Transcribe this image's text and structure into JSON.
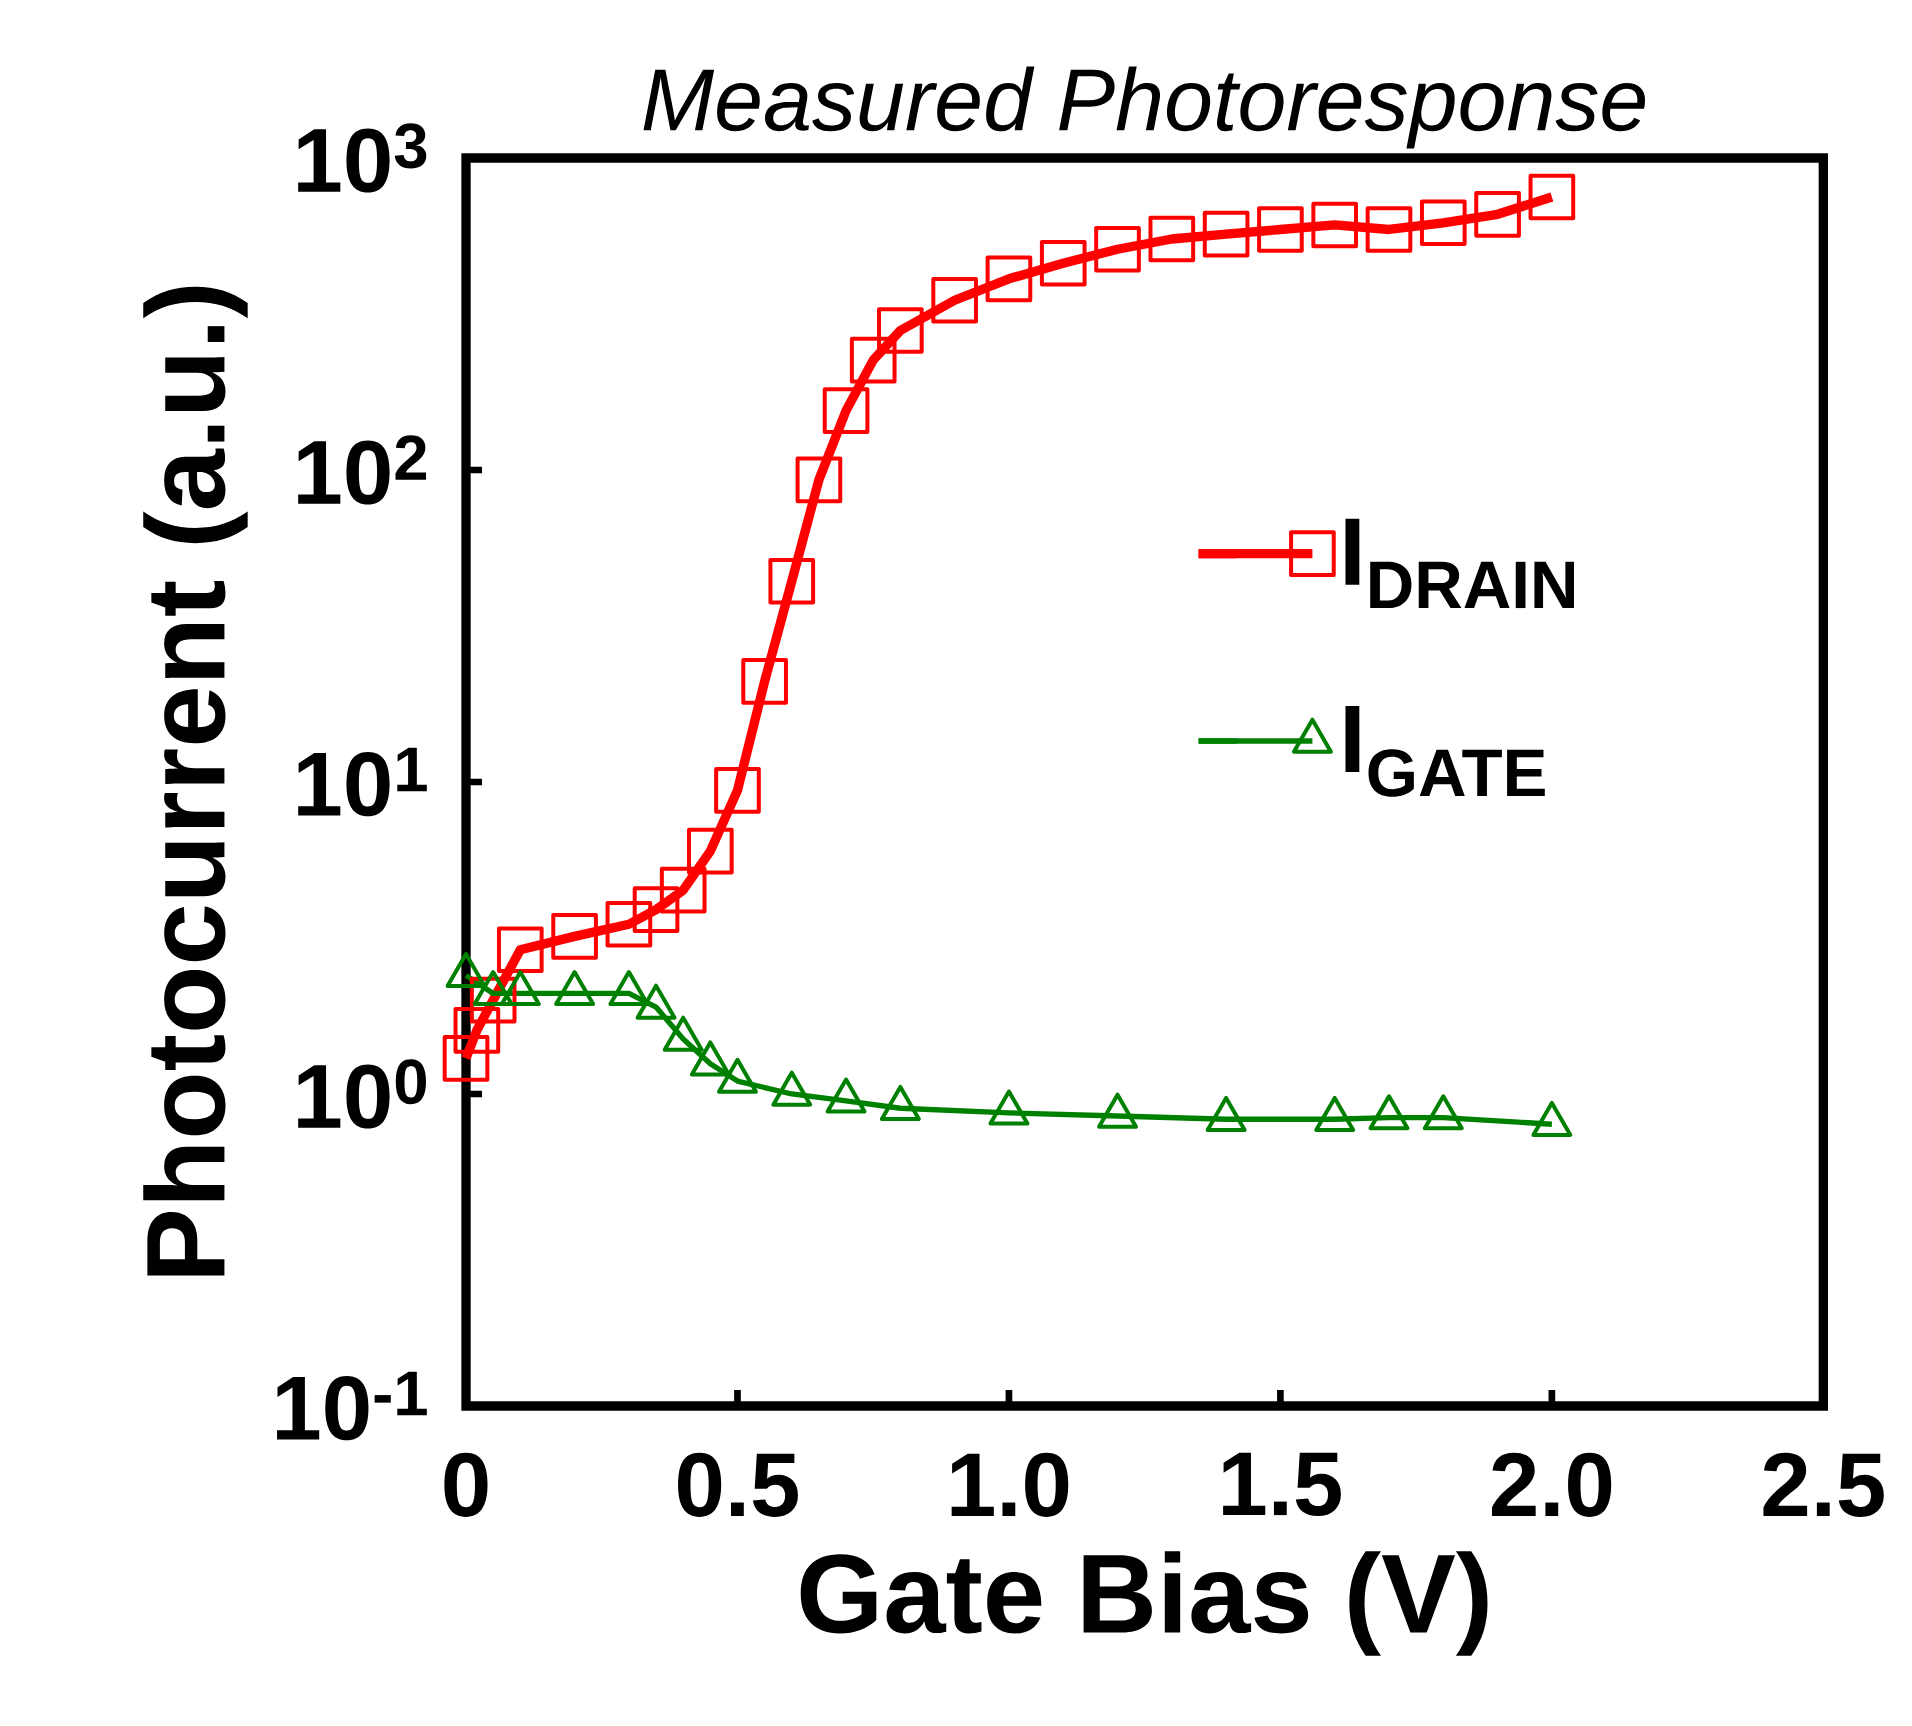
{
  "chart_data": {
    "type": "line",
    "title": "Measured Photoresponse",
    "xlabel": "Gate Bias (V)",
    "ylabel": "Photocurrent (a.u.)",
    "xlim": [
      0,
      2.5
    ],
    "ylim": [
      0.1,
      1000
    ],
    "log": "y",
    "legend": "right",
    "line_style": "solid",
    "xticks": [
      0,
      0.5,
      {
        "value": 1,
        "label": "1.0"
      },
      1.5,
      {
        "value": 2,
        "label": "2.0"
      },
      2.5
    ],
    "yticks": [
      {
        "value": 0.1,
        "label": "10$^{-1}$"
      },
      {
        "value": 1,
        "label": "10$^{0}$"
      },
      {
        "value": 10,
        "label": "10$^{1}$"
      },
      {
        "value": 100,
        "label": "10$^{2}$"
      },
      {
        "value": 1000,
        "label": "10$^{3}$"
      }
    ],
    "series": [
      {
        "name": "I$_{DRAIN}$",
        "color": "#ff0000",
        "marker": "square",
        "x": [
          0,
          0.02,
          0.05,
          0.1,
          0.2,
          0.3,
          0.35,
          0.4,
          0.45,
          0.5,
          0.55,
          0.6,
          0.65,
          0.7,
          0.75,
          0.8,
          0.9,
          1.0,
          1.1,
          1.2,
          1.3,
          1.4,
          1.5,
          1.6,
          1.7,
          1.8,
          1.9,
          2.0
        ],
        "values": [
          1.3,
          1.6,
          2.0,
          2.9,
          3.2,
          3.5,
          3.9,
          4.5,
          6.0,
          9.4,
          21,
          44,
          93,
          155,
          225,
          280,
          350,
          410,
          460,
          510,
          550,
          570,
          590,
          610,
          590,
          620,
          660,
          750
        ]
      },
      {
        "name": "I$_{GATE}$",
        "color": "#008000",
        "marker": "triangle",
        "x": [
          0,
          0.05,
          0.1,
          0.2,
          0.3,
          0.35,
          0.4,
          0.45,
          0.5,
          0.6,
          0.7,
          0.8,
          1.0,
          1.2,
          1.4,
          1.6,
          1.7,
          1.8,
          2.0
        ],
        "values": [
          2.4,
          2.1,
          2.1,
          2.1,
          2.1,
          1.9,
          1.5,
          1.25,
          1.1,
          1.0,
          0.95,
          0.9,
          0.87,
          0.85,
          0.83,
          0.83,
          0.84,
          0.84,
          0.8
        ]
      }
    ]
  }
}
